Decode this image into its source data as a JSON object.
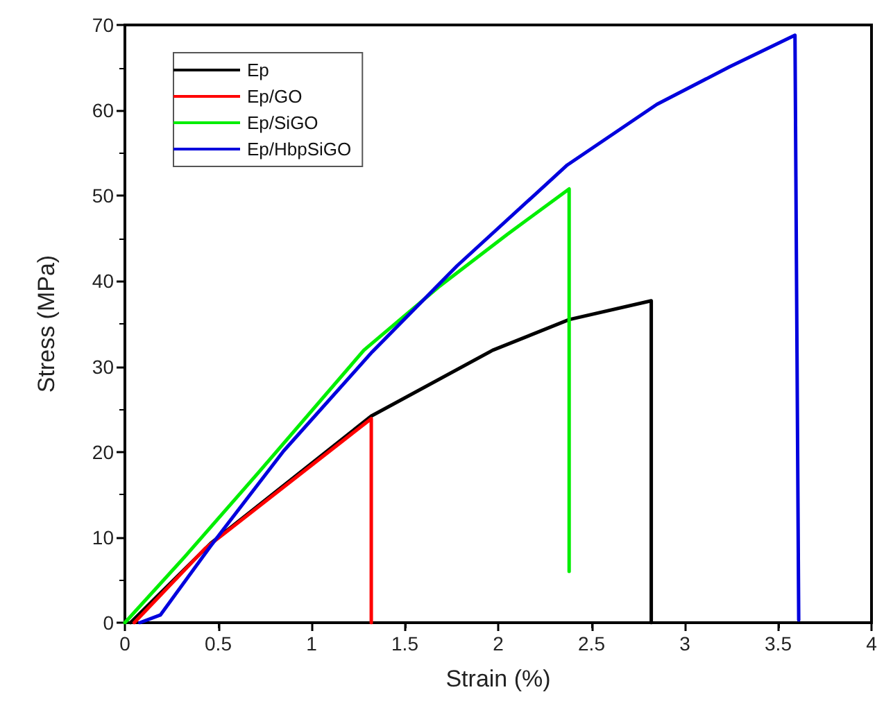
{
  "chart_data": {
    "type": "line",
    "xlabel": "Strain (%)",
    "ylabel": "Stress (MPa)",
    "xlim": [
      0,
      4
    ],
    "xticks": [
      0,
      0.5,
      1,
      1.5,
      2,
      2.5,
      3,
      3.5,
      4
    ],
    "ylim": [
      0,
      70
    ],
    "yticks": [
      0,
      10,
      20,
      30,
      40,
      50,
      60,
      70
    ],
    "grid": false,
    "legend": "top left",
    "marker": "none",
    "line_style": "solid",
    "series": [
      {
        "name": "Ep",
        "color": "#000000",
        "x": [
          0.03,
          0.46,
          1.32,
          1.97,
          2.38,
          2.82,
          2.82
        ],
        "values": [
          0,
          9.3,
          24.2,
          31.9,
          35.5,
          37.7,
          0
        ]
      },
      {
        "name": "Ep/GO",
        "color": "#ff0000",
        "x": [
          0.05,
          0.43,
          1.32,
          1.32
        ],
        "values": [
          0,
          8.7,
          23.9,
          0
        ]
      },
      {
        "name": "Ep/SiGO",
        "color": "#00ee00",
        "x": [
          0,
          0.32,
          0.72,
          1.28,
          1.68,
          2.05,
          2.38,
          2.38
        ],
        "values": [
          0,
          7.7,
          17.7,
          31.9,
          39.3,
          45.5,
          50.8,
          6.0
        ]
      },
      {
        "name": "Ep/HbpSiGO",
        "color": "#0000dd",
        "x": [
          0.08,
          0.19,
          0.46,
          0.85,
          1.32,
          1.78,
          2.37,
          2.85,
          3.24,
          3.59,
          3.61
        ],
        "values": [
          0,
          0.9,
          9.0,
          20.1,
          31.6,
          41.8,
          53.6,
          60.7,
          65.1,
          68.8,
          0.3
        ]
      }
    ]
  }
}
